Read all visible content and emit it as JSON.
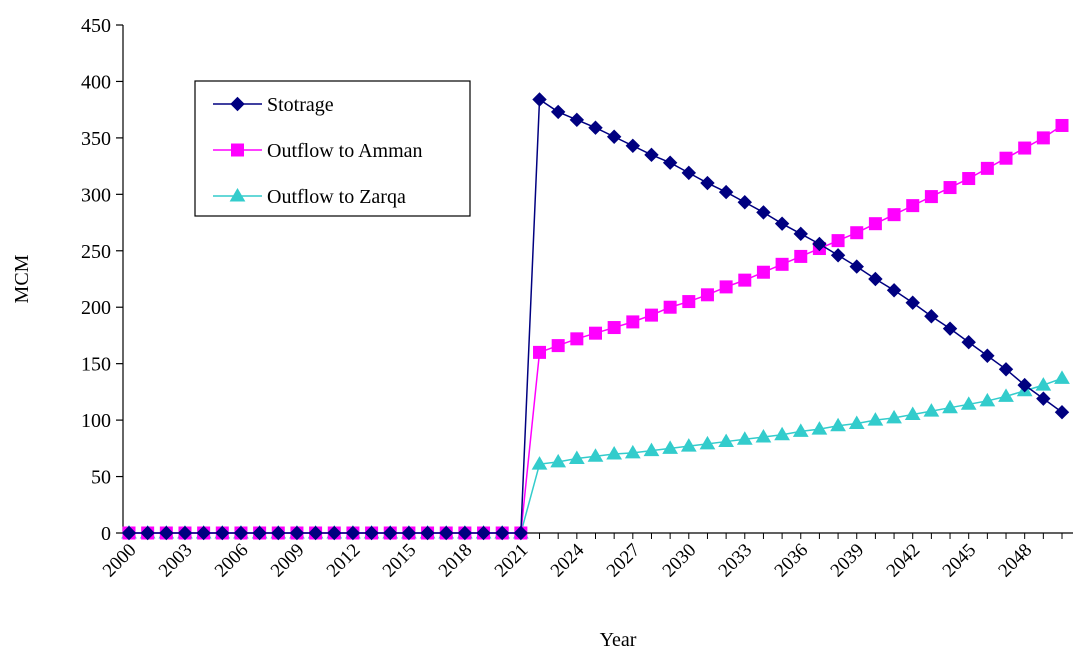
{
  "chart_data": {
    "type": "line",
    "title": "",
    "xlabel": "Year",
    "ylabel": "MCM",
    "ylim": [
      0,
      450
    ],
    "yticks": [
      0,
      50,
      100,
      150,
      200,
      250,
      300,
      350,
      400,
      450
    ],
    "x": [
      2000,
      2001,
      2002,
      2003,
      2004,
      2005,
      2006,
      2007,
      2008,
      2009,
      2010,
      2011,
      2012,
      2013,
      2014,
      2015,
      2016,
      2017,
      2018,
      2019,
      2020,
      2021,
      2022,
      2023,
      2024,
      2025,
      2026,
      2027,
      2028,
      2029,
      2030,
      2031,
      2032,
      2033,
      2034,
      2035,
      2036,
      2037,
      2038,
      2039,
      2040,
      2041,
      2042,
      2043,
      2044,
      2045,
      2046,
      2047,
      2048,
      2049,
      2050
    ],
    "xtick_labels": [
      "2000",
      "2003",
      "2006",
      "2009",
      "2012",
      "2015",
      "2018",
      "2021",
      "2024",
      "2027",
      "2030",
      "2033",
      "2036",
      "2039",
      "2042",
      "2045",
      "2048"
    ],
    "grid": false,
    "legend_position": "top-left",
    "series": [
      {
        "name": "Stotrage",
        "color": "#000080",
        "marker": "diamond",
        "values": [
          0,
          0,
          0,
          0,
          0,
          0,
          0,
          0,
          0,
          0,
          0,
          0,
          0,
          0,
          0,
          0,
          0,
          0,
          0,
          0,
          0,
          0,
          384,
          373,
          366,
          359,
          351,
          343,
          335,
          328,
          319,
          310,
          302,
          293,
          284,
          274,
          265,
          256,
          246,
          236,
          225,
          215,
          204,
          192,
          181,
          169,
          157,
          145,
          131,
          119,
          107
        ]
      },
      {
        "name": "Outflow to Amman",
        "color": "#ff00ff",
        "marker": "square",
        "values": [
          0,
          0,
          0,
          0,
          0,
          0,
          0,
          0,
          0,
          0,
          0,
          0,
          0,
          0,
          0,
          0,
          0,
          0,
          0,
          0,
          0,
          0,
          160,
          166,
          172,
          177,
          182,
          187,
          193,
          200,
          205,
          211,
          218,
          224,
          231,
          238,
          245,
          252,
          259,
          266,
          274,
          282,
          290,
          298,
          306,
          314,
          323,
          332,
          341,
          350,
          361
        ]
      },
      {
        "name": "Outflow to Zarqa",
        "color": "#33cccc",
        "marker": "triangle",
        "values": [
          0,
          0,
          0,
          0,
          0,
          0,
          0,
          0,
          0,
          0,
          0,
          0,
          0,
          0,
          0,
          0,
          0,
          0,
          0,
          0,
          0,
          0,
          61,
          63,
          66,
          68,
          70,
          71,
          73,
          75,
          77,
          79,
          81,
          83,
          85,
          87,
          90,
          92,
          95,
          97,
          100,
          102,
          105,
          108,
          111,
          114,
          117,
          121,
          126,
          131,
          137
        ]
      }
    ]
  }
}
